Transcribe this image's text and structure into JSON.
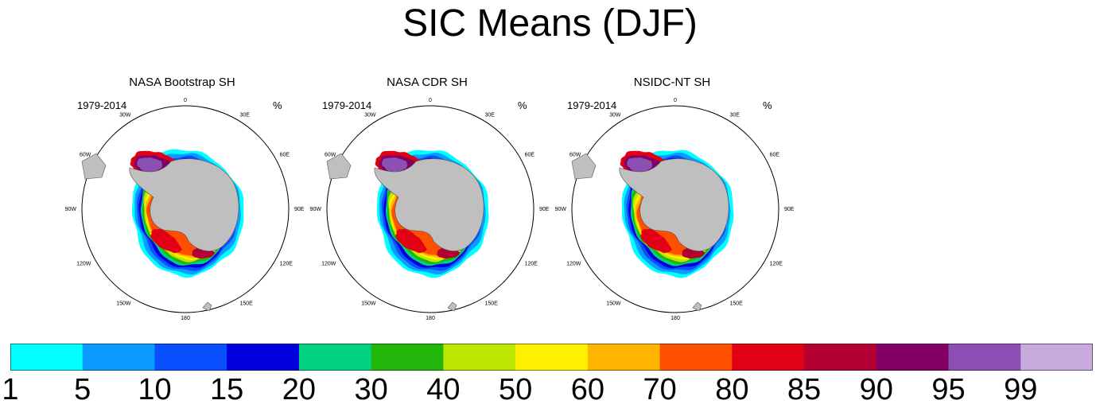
{
  "title": "SIC Means (DJF)",
  "panels": [
    {
      "title": "NASA Bootstrap SH",
      "period": "1979-2014",
      "units": "%"
    },
    {
      "title": "NASA CDR SH",
      "period": "1979-2014",
      "units": "%"
    },
    {
      "title": "NSIDC-NT SH",
      "period": "1979-2014",
      "units": "%"
    }
  ],
  "lon_labels": [
    "0",
    "30E",
    "60E",
    "90E",
    "120E",
    "150E",
    "180",
    "150W",
    "120W",
    "90W",
    "60W",
    "30W"
  ],
  "colorbar": {
    "levels": [
      "1",
      "5",
      "10",
      "15",
      "20",
      "30",
      "40",
      "50",
      "60",
      "70",
      "80",
      "85",
      "90",
      "95",
      "99"
    ],
    "colors": [
      "#00ffff",
      "#0a9cff",
      "#0a50ff",
      "#0000dc",
      "#00d27f",
      "#23b60a",
      "#bde600",
      "#fff000",
      "#ffb400",
      "#ff5000",
      "#e10014",
      "#b40032",
      "#820064",
      "#8c50b4",
      "#c8aadc"
    ]
  },
  "colors": {
    "land": "#bfbfbf",
    "land_outline": "#555555",
    "background": "#ffffff"
  }
}
